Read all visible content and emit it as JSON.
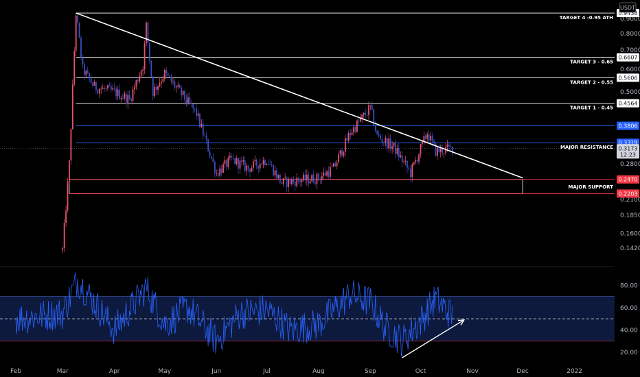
{
  "currency": "USDT",
  "chart_data": [
    {
      "type": "candlestick",
      "scale": "log",
      "ylim": [
        0.125,
        1.02
      ],
      "x_ticks": [
        "Feb",
        "Mar",
        "Apr",
        "May",
        "Jun",
        "Jul",
        "Aug",
        "Sep",
        "Oct",
        "Nov",
        "Dec",
        "2022"
      ],
      "y_ticks": [
        0.9,
        0.8,
        0.7,
        0.6,
        0.5,
        0.28,
        0.21,
        0.185,
        0.16,
        0.142
      ],
      "y_tick_labels": [
        "0.9000",
        "0.8000",
        "0.7000",
        "0.6000",
        "0.5000",
        "0.2800",
        "0.2100",
        "0.1850",
        "0.1600",
        "0.1420"
      ],
      "price_path": [
        [
          "Mar 1",
          0.14
        ],
        [
          "Mar 5",
          0.28
        ],
        [
          "Mar 9",
          0.9438
        ],
        [
          "Mar 13",
          0.6
        ],
        [
          "Mar 20",
          0.52
        ],
        [
          "Apr 1",
          0.5
        ],
        [
          "Apr 10",
          0.47
        ],
        [
          "Apr 18",
          0.62
        ],
        [
          "Apr 20",
          0.85
        ],
        [
          "Apr 24",
          0.5
        ],
        [
          "May 1",
          0.58
        ],
        [
          "May 10",
          0.5
        ],
        [
          "May 20",
          0.42
        ],
        [
          "Jun 1",
          0.26
        ],
        [
          "Jun 10",
          0.29
        ],
        [
          "Jun 20",
          0.27
        ],
        [
          "Jul 1",
          0.29
        ],
        [
          "Jul 10",
          0.24
        ],
        [
          "Jul 20",
          0.245
        ],
        [
          "Aug 1",
          0.25
        ],
        [
          "Aug 10",
          0.27
        ],
        [
          "Aug 20",
          0.36
        ],
        [
          "Sep 1",
          0.44
        ],
        [
          "Sep 5",
          0.35
        ],
        [
          "Sep 15",
          0.32
        ],
        [
          "Sep 25",
          0.26
        ],
        [
          "Oct 5",
          0.36
        ],
        [
          "Oct 10",
          0.31
        ],
        [
          "Oct 20",
          0.3173
        ]
      ],
      "last_price": "0.3173",
      "countdown": "12:23",
      "levels": [
        {
          "value": 0.9438,
          "label": "TARGET 4 -0.95 ATH",
          "price_label": "0.9438",
          "color": "#ffffff"
        },
        {
          "value": 0.6607,
          "label": "TARGET 3 - 0.65",
          "price_label": "0.6607",
          "color": "#ffffff"
        },
        {
          "value": 0.5606,
          "label": "TARGET 2 - 0.55",
          "price_label": "0.5606",
          "color": "#ffffff"
        },
        {
          "value": 0.4564,
          "label": "TARGET 1 - 0.45",
          "price_label": "0.4564",
          "color": "#ffffff"
        },
        {
          "value": 0.3806,
          "label": "",
          "price_label": "0.3806",
          "color": "#2962ff"
        },
        {
          "value": 0.3319,
          "label": "MAJOR RESISTANCE",
          "price_label": "0.3319",
          "color": "#2962ff"
        },
        {
          "value": 0.247,
          "label": "",
          "price_label": "0.2470",
          "color": "#f23645"
        },
        {
          "value": 0.2203,
          "label": "",
          "price_label": "0.2203",
          "color": "#f23645"
        }
      ],
      "support_zone": {
        "label": "MAJOR SUPPORT",
        "low": 0.2203,
        "high": 0.247
      },
      "trendline": {
        "start": [
          "Mar 9",
          0.9438
        ],
        "end": [
          "Dec 1",
          0.25
        ],
        "color": "#ffffff"
      }
    },
    {
      "type": "line",
      "series_color": "#2962ff",
      "ylim": [
        10,
        95
      ],
      "y_ticks": [
        80,
        60,
        40,
        20
      ],
      "y_tick_labels": [
        "80.00",
        "60.00",
        "40.00",
        "20.00"
      ],
      "band": [
        30,
        70
      ],
      "midline": 50,
      "rsi_path": [
        [
          "Feb 1",
          50
        ],
        [
          "Mar 1",
          55
        ],
        [
          "Mar 10",
          85
        ],
        [
          "Apr 1",
          40
        ],
        [
          "Apr 20",
          78
        ],
        [
          "May 1",
          45
        ],
        [
          "May 15",
          60
        ],
        [
          "Jun 1",
          30
        ],
        [
          "Jun 15",
          55
        ],
        [
          "Jul 1",
          58
        ],
        [
          "Jul 15",
          40
        ],
        [
          "Aug 1",
          45
        ],
        [
          "Aug 20",
          72
        ],
        [
          "Sep 1",
          65
        ],
        [
          "Sep 10",
          42
        ],
        [
          "Sep 20",
          30
        ],
        [
          "Oct 1",
          48
        ],
        [
          "Oct 10",
          68
        ],
        [
          "Oct 20",
          52
        ]
      ],
      "trendline": {
        "start": [
          "Sep 20",
          15
        ],
        "end": [
          "Oct 27",
          49
        ],
        "color": "#ffffff"
      }
    }
  ]
}
